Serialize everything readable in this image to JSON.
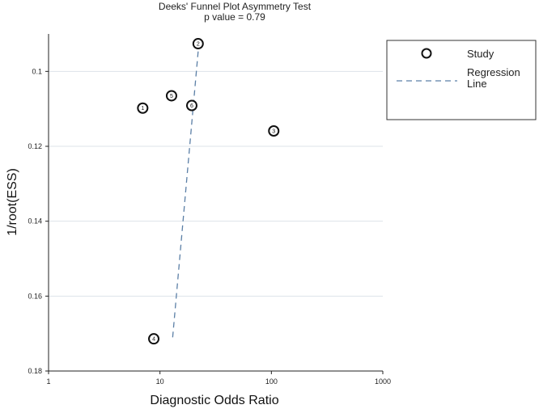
{
  "chart_data": {
    "type": "scatter",
    "title": "Deeks' Funnel Plot Asymmetry Test",
    "subtitle": "p value  =   0.79",
    "xlabel": "Diagnostic Odds Ratio",
    "ylabel": "1/root(ESS)",
    "x_scale": "log",
    "y_reversed": true,
    "xlim": [
      1,
      1000
    ],
    "ylim": [
      0.09,
      0.18
    ],
    "x_ticks": [
      1,
      10,
      100,
      1000
    ],
    "x_tick_labels": [
      "1",
      "10",
      "100",
      "1000"
    ],
    "y_ticks": [
      0.1,
      0.12,
      0.14,
      0.16,
      0.18
    ],
    "y_tick_labels": [
      "0.1",
      "0.12",
      "0.14",
      "0.16",
      "0.18"
    ],
    "grid": "horizontal",
    "legend_position": "top-right",
    "series": [
      {
        "name": "Study",
        "points": [
          {
            "label": "1",
            "x": 7.0,
            "y": 0.1098
          },
          {
            "label": "2",
            "x": 22.0,
            "y": 0.0926
          },
          {
            "label": "3",
            "x": 105.0,
            "y": 0.1159
          },
          {
            "label": "4",
            "x": 8.8,
            "y": 0.1714
          },
          {
            "label": "5",
            "x": 12.7,
            "y": 0.1065
          },
          {
            "label": "6",
            "x": 19.3,
            "y": 0.1091
          }
        ]
      },
      {
        "name": "Regression Line",
        "line": [
          {
            "x": 13.0,
            "y": 0.171
          },
          {
            "x": 22.5,
            "y": 0.0915
          }
        ]
      }
    ],
    "legend": {
      "study_label": "Study",
      "regression_label_line1": "Regression",
      "regression_label_line2": "Line"
    },
    "colors": {
      "point_stroke": "#111111",
      "regression": "#5b7fa6",
      "grid": "#dde3ea",
      "axis": "#222222"
    }
  }
}
